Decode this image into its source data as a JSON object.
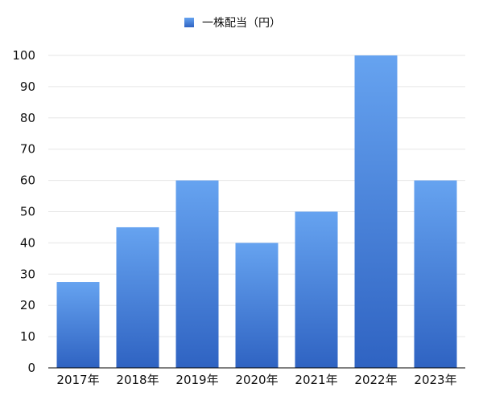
{
  "chart_data": {
    "type": "bar",
    "categories": [
      "2017年",
      "2018年",
      "2019年",
      "2020年",
      "2021年",
      "2022年",
      "2023年"
    ],
    "series": [
      {
        "name": "一株配当（円）",
        "values": [
          27.5,
          45,
          60,
          40,
          50,
          100,
          60
        ]
      }
    ],
    "title": "",
    "xlabel": "",
    "ylabel": "",
    "ylim": [
      0,
      100
    ],
    "yticks": [
      0,
      10,
      20,
      30,
      40,
      50,
      60,
      70,
      80,
      90,
      100
    ],
    "grid": true,
    "legend_position": "top-center",
    "colors": {
      "bar_top": "#66a3f0",
      "bar_bottom": "#2f63c2",
      "legend_swatch": "#3f7bd8"
    }
  }
}
